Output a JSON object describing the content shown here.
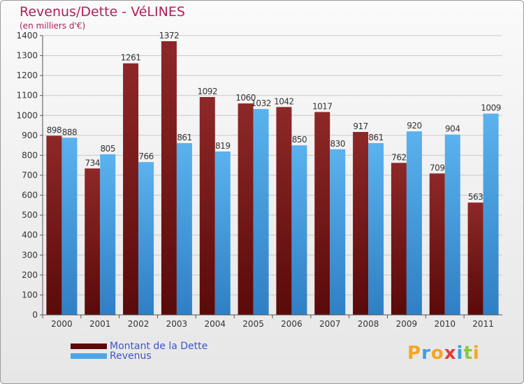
{
  "chart_data": {
    "type": "bar",
    "title": "Revenus/Dette - VéLINES",
    "subtitle": "(en milliers d'€)",
    "categories": [
      "2000",
      "2001",
      "2002",
      "2003",
      "2004",
      "2005",
      "2006",
      "2007",
      "2008",
      "2009",
      "2010",
      "2011"
    ],
    "series": [
      {
        "name": "Montant de la Dette",
        "color": "#8b1a1a",
        "values": [
          898,
          734,
          1261,
          1372,
          1092,
          1060,
          1042,
          1017,
          917,
          762,
          709,
          563
        ]
      },
      {
        "name": "Revenus",
        "color": "#4da6e8",
        "values": [
          888,
          805,
          766,
          861,
          819,
          1032,
          850,
          830,
          861,
          920,
          904,
          1009
        ]
      }
    ],
    "ylim": [
      0,
      1400
    ],
    "yticks": [
      0,
      100,
      200,
      300,
      400,
      500,
      600,
      700,
      800,
      900,
      1000,
      1100,
      1200,
      1300,
      1400
    ],
    "grid": true,
    "legend_position": "bottom-left"
  },
  "logo": {
    "letters": [
      "P",
      "r",
      "o",
      "x",
      "i",
      "t",
      "i"
    ],
    "colors": [
      "#f5a623",
      "#3aa0e0",
      "#f5a623",
      "#e23b3b",
      "#3aa0e0",
      "#8cc63f",
      "#f5a623"
    ]
  }
}
